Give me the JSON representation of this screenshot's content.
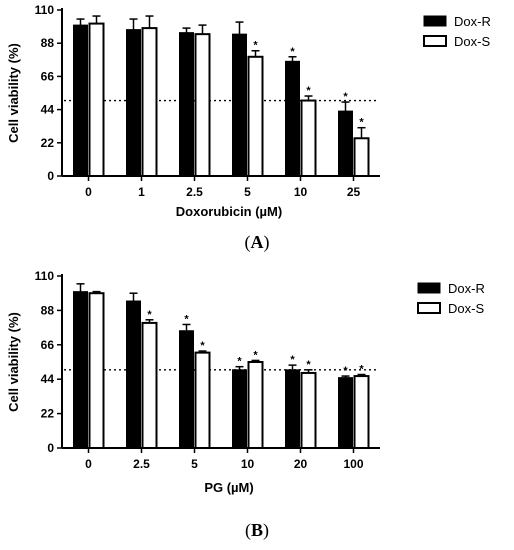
{
  "chart_data": [
    {
      "type": "bar",
      "panel_label": "A",
      "categories": [
        "0",
        "1",
        "2.5",
        "5",
        "10",
        "25"
      ],
      "xlabel": "Doxorubicin (µM)",
      "ylabel": "Cell viability (%)",
      "ylim": [
        0,
        110
      ],
      "yticks": [
        0,
        22,
        44,
        66,
        88,
        110
      ],
      "reference_line": 50,
      "legend_position": "top-right",
      "series": [
        {
          "name": "Dox-R",
          "color": "#000000",
          "fill": "solid",
          "values": [
            100,
            97,
            95,
            94,
            76,
            43
          ],
          "errors": [
            4,
            7,
            3,
            8,
            3,
            6
          ],
          "significant": [
            false,
            false,
            false,
            false,
            true,
            true
          ]
        },
        {
          "name": "Dox-S",
          "color": "#000000",
          "fill": "open",
          "values": [
            101,
            98,
            94,
            79,
            50,
            25
          ],
          "errors": [
            5,
            8,
            6,
            4,
            3,
            7
          ],
          "significant": [
            false,
            false,
            false,
            true,
            true,
            true
          ]
        }
      ]
    },
    {
      "type": "bar",
      "panel_label": "B",
      "categories": [
        "0",
        "2.5",
        "5",
        "10",
        "20",
        "100"
      ],
      "xlabel": "PG (µM)",
      "ylabel": "Cell viability (%)",
      "ylim": [
        0,
        110
      ],
      "yticks": [
        0,
        22,
        44,
        66,
        88,
        110
      ],
      "reference_line": 50,
      "legend_position": "top-right",
      "series": [
        {
          "name": "Dox-R",
          "color": "#000000",
          "fill": "solid",
          "values": [
            100,
            94,
            75,
            50,
            50,
            45
          ],
          "errors": [
            5,
            5,
            4,
            2,
            3,
            1
          ],
          "significant": [
            false,
            false,
            true,
            true,
            true,
            true
          ]
        },
        {
          "name": "Dox-S",
          "color": "#000000",
          "fill": "open",
          "values": [
            99,
            80,
            61,
            55,
            48,
            46
          ],
          "errors": [
            1,
            2,
            1,
            1,
            2,
            1
          ],
          "significant": [
            false,
            true,
            true,
            true,
            true,
            true
          ]
        }
      ]
    }
  ],
  "significance_marker": "*",
  "panel_caption_format": [
    "(",
    ")"
  ]
}
